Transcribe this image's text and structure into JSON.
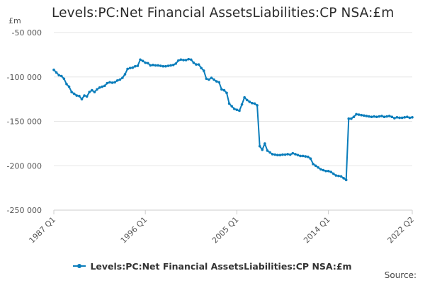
{
  "colors": {
    "series": "#0a7dbb",
    "grid": "#e6e6e6",
    "axis": "#cccccc",
    "text": "#333333",
    "tick_text": "#555555"
  },
  "source_label": "Source:",
  "chart_data": {
    "type": "line",
    "title": "Levels:PC:Net Financial AssetsLiabilities:CP NSA:£m",
    "ylabel": "£m",
    "xlabel": "",
    "ylim": [
      -250000,
      -50000
    ],
    "yticks": [
      -50000,
      -100000,
      -150000,
      -200000,
      -250000
    ],
    "ytick_labels": [
      "-50 000",
      "-100 000",
      "-150 000",
      "-200 000",
      "-250 000"
    ],
    "x_range": [
      0,
      141
    ],
    "xticks": [
      {
        "index": 0,
        "label": "1987 Q1"
      },
      {
        "index": 36,
        "label": "1996 Q1"
      },
      {
        "index": 72,
        "label": "2005 Q1"
      },
      {
        "index": 108,
        "label": "2014 Q1"
      },
      {
        "index": 141,
        "label": "2022 Q2"
      }
    ],
    "legend_position": "bottom",
    "grid": true,
    "series": [
      {
        "name": "Levels:PC:Net Financial AssetsLiabilities:CP NSA:£m",
        "start": "1987 Q1",
        "frequency": "quarterly",
        "values": [
          -92000,
          -95000,
          -98000,
          -99000,
          -102000,
          -108000,
          -111000,
          -117000,
          -119000,
          -121000,
          -121500,
          -125000,
          -121000,
          -122000,
          -117000,
          -115000,
          -117000,
          -114000,
          -112000,
          -111000,
          -110000,
          -107000,
          -106000,
          -106500,
          -106000,
          -104000,
          -103000,
          -101000,
          -97000,
          -91000,
          -90000,
          -89500,
          -88000,
          -87500,
          -80500,
          -82000,
          -84000,
          -84500,
          -87000,
          -86500,
          -87000,
          -87000,
          -87500,
          -88000,
          -88000,
          -87500,
          -87000,
          -86500,
          -85000,
          -81500,
          -80500,
          -81000,
          -81000,
          -80000,
          -80500,
          -84000,
          -86000,
          -86000,
          -90000,
          -93000,
          -102000,
          -103000,
          -101000,
          -103000,
          -105000,
          -106000,
          -114000,
          -115000,
          -118000,
          -130000,
          -133000,
          -136000,
          -137000,
          -138000,
          -131000,
          -123000,
          -126000,
          -128000,
          -129500,
          -130000,
          -132000,
          -178000,
          -182000,
          -175000,
          -183000,
          -185000,
          -187000,
          -187500,
          -188000,
          -188000,
          -187500,
          -187500,
          -187000,
          -187500,
          -186000,
          -187000,
          -188000,
          -189000,
          -189000,
          -189500,
          -190000,
          -192000,
          -198000,
          -200000,
          -202000,
          -204000,
          -205000,
          -206000,
          -206000,
          -207000,
          -209000,
          -211000,
          -211500,
          -212000,
          -214000,
          -216000,
          -147000,
          -147000,
          -145000,
          -142000,
          -142500,
          -143000,
          -143500,
          -144000,
          -144500,
          -145000,
          -144500,
          -145000,
          -144500,
          -144000,
          -145000,
          -144500,
          -144000,
          -145000,
          -146500,
          -145500,
          -146000,
          -146000,
          -145500,
          -145000,
          -146000,
          -145500
        ]
      }
    ]
  }
}
